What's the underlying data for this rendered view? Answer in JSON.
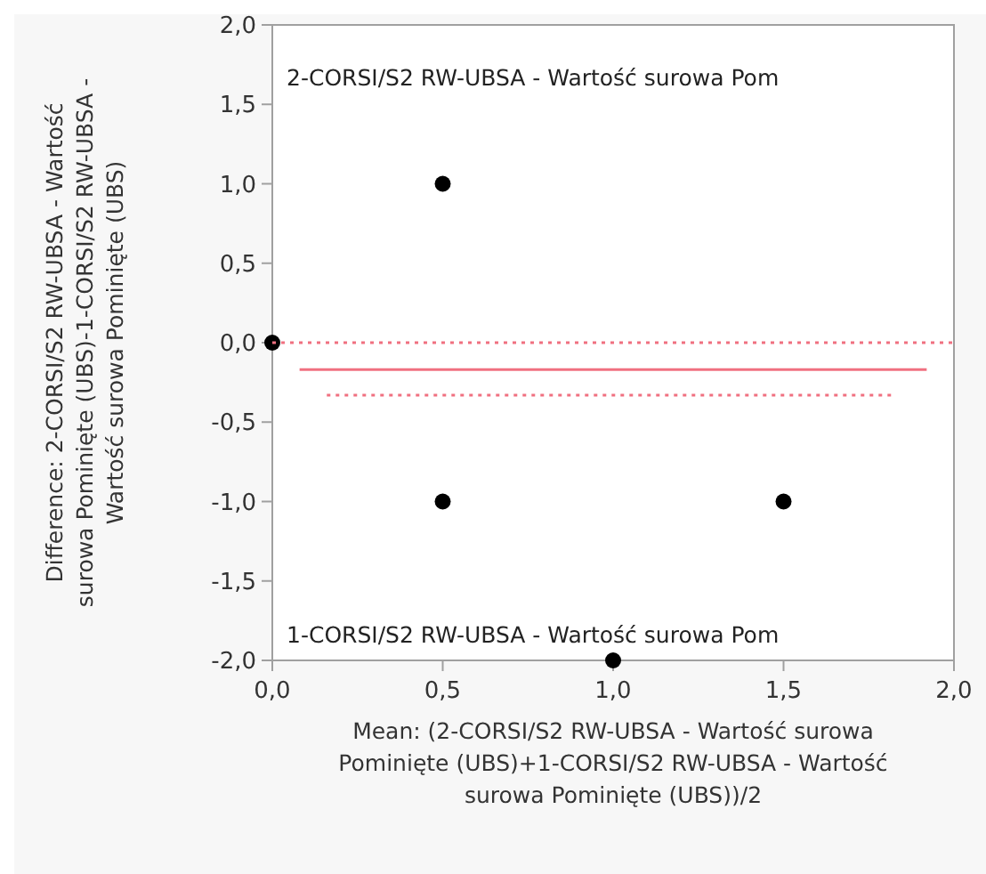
{
  "chart_data": {
    "type": "scatter",
    "xlabel": "Mean: (2-CORSI/S2 RW-UBSA - Wartość surowa Pominięte (UBS)+1-CORSI/S2 RW-UBSA - Wartość surowa Pominięte (UBS))/2",
    "ylabel": "Difference: 2-CORSI/S2 RW-UBSA - Wartość surowa Pominięte (UBS)-1-CORSI/S2 RW-UBSA - Wartość surowa Pominięte (UBS)",
    "annotations": [
      "2-CORSI/S2 RW-UBSA - Wartość surowa Pom",
      "1-CORSI/S2 RW-UBSA - Wartość surowa Pom"
    ],
    "series": [
      {
        "color": "#000000",
        "marker": "circle",
        "x": [
          0,
          0.5,
          0.5,
          1.5,
          1
        ],
        "values": [
          0,
          1,
          -1,
          -1,
          -2
        ]
      },
      {
        "type": "line",
        "color": "#f07080",
        "line_style": "dotted",
        "x": [
          0,
          2
        ],
        "values": [
          0,
          0
        ]
      },
      {
        "type": "line",
        "color": "#f07080",
        "line_style": "solid",
        "x": [
          0.08,
          1.92
        ],
        "values": [
          -0.17,
          -0.17
        ]
      },
      {
        "type": "line",
        "color": "#f07080",
        "line_style": "dotted",
        "x": [
          0.16,
          1.82
        ],
        "values": [
          -0.33,
          -0.33
        ]
      }
    ],
    "xlim": [
      0,
      2
    ],
    "xticks": [
      {
        "value": 0,
        "label": "0,0"
      },
      {
        "value": 0.5,
        "label": "0,5"
      },
      {
        "value": 1,
        "label": "1,0"
      },
      {
        "value": 1.5,
        "label": "1,5"
      },
      {
        "value": 2,
        "label": "2,0"
      }
    ],
    "ylim": [
      -2,
      2
    ],
    "yticks": [
      {
        "value": -2,
        "label": "-2,0"
      },
      {
        "value": -1.5,
        "label": "-1,5"
      },
      {
        "value": -1,
        "label": "-1,0"
      },
      {
        "value": -0.5,
        "label": "-0,5"
      },
      {
        "value": 0,
        "label": "0,0"
      },
      {
        "value": 0.5,
        "label": "0,5"
      },
      {
        "value": 1,
        "label": "1,0"
      },
      {
        "value": 1.5,
        "label": "1,5"
      },
      {
        "value": 2,
        "label": "2,0"
      }
    ],
    "grid": false
  }
}
